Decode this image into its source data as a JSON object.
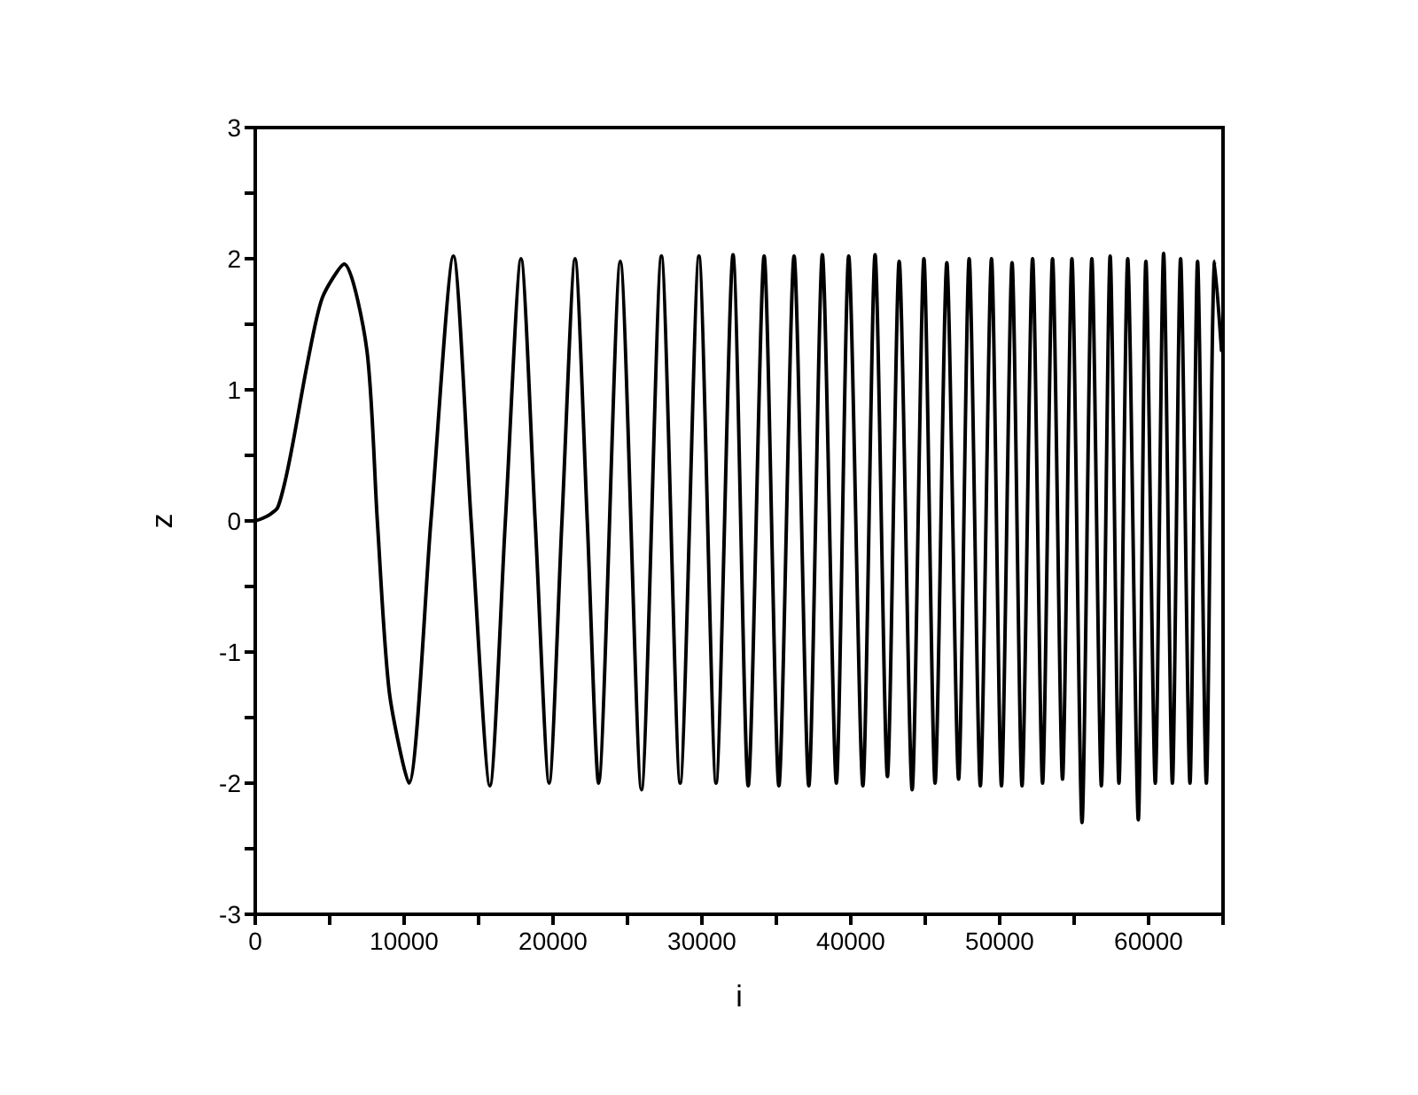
{
  "chart_data": {
    "type": "line",
    "xlabel": "i",
    "ylabel": "z",
    "xlim": [
      0,
      65000
    ],
    "ylim": [
      -3,
      3
    ],
    "xticks": [
      0,
      {
        "value": 5000,
        "label": null
      },
      10000,
      {
        "value": 15000,
        "label": null
      },
      20000,
      {
        "value": 25000,
        "label": null
      },
      30000,
      {
        "value": 35000,
        "label": null
      },
      40000,
      {
        "value": 45000,
        "label": null
      },
      50000,
      {
        "value": 55000,
        "label": null
      },
      60000,
      {
        "value": 65000,
        "label": null
      }
    ],
    "yticks": [
      -3,
      {
        "value": -2.5,
        "label": null
      },
      -2,
      {
        "value": -1.5,
        "label": null
      },
      -1,
      {
        "value": -0.5,
        "label": null
      },
      0,
      {
        "value": 0.5,
        "label": null
      },
      1,
      {
        "value": 1.5,
        "label": null
      },
      2,
      {
        "value": 2.5,
        "label": null
      },
      3
    ],
    "grid": false,
    "marker": "none",
    "line_style": "solid",
    "series": [
      {
        "color": "#000000",
        "x": [
          0,
          500,
          1000,
          1500,
          2000,
          2540,
          3500,
          4500,
          5980,
          7500,
          8200,
          9000,
          10320,
          11800,
          13310,
          14500,
          15760,
          16800,
          17850,
          18800,
          19740,
          20600,
          21480,
          22300,
          23060,
          24520,
          25940,
          27280,
          28540,
          29800,
          30950,
          32090,
          33110,
          34180,
          35170,
          36190,
          37180,
          38090,
          39030,
          39860,
          40810,
          41630,
          42460,
          43250,
          44120,
          44910,
          45660,
          46450,
          47240,
          47950,
          48700,
          49450,
          50120,
          50830,
          51500,
          52210,
          52880,
          53550,
          54220,
          54850,
          55530,
          56190,
          56830,
          57420,
          58010,
          58600,
          59310,
          59820,
          60450,
          61010,
          61600,
          62150,
          62780,
          63290,
          63880,
          64440,
          64900
        ],
        "values": [
          0,
          0.02,
          0.05,
          0.1,
          0.3,
          0.6,
          1.2,
          1.7,
          1.96,
          1.3,
          0,
          -1.3,
          -2.0,
          0,
          2.02,
          0,
          -2.02,
          0,
          2.0,
          0,
          -2.0,
          0,
          2.0,
          0,
          -2.0,
          1.98,
          -2.05,
          2.02,
          -2.0,
          2.02,
          -2.0,
          2.03,
          -2.02,
          2.02,
          -2.02,
          2.02,
          -2.02,
          2.03,
          -2.0,
          2.02,
          -2.02,
          2.03,
          -1.95,
          1.98,
          -2.05,
          2.0,
          -2.0,
          1.97,
          -1.97,
          2.0,
          -2.02,
          2.0,
          -2.02,
          1.97,
          -2.02,
          2.0,
          -2.0,
          2.0,
          -1.97,
          2.0,
          -2.3,
          2.0,
          -2.02,
          2.02,
          -2.0,
          2.0,
          -2.28,
          1.98,
          -2.0,
          2.04,
          -2.0,
          2.0,
          -2.0,
          1.98,
          -2.0,
          1.98,
          1.3
        ]
      }
    ]
  }
}
